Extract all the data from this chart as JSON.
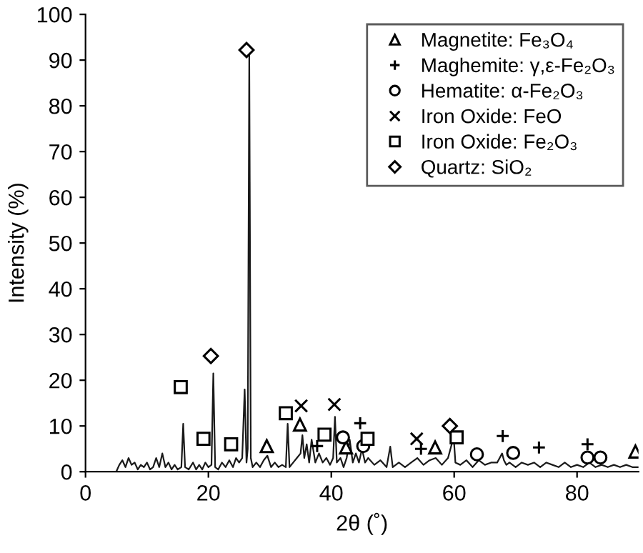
{
  "chart_data": {
    "type": "line",
    "xlabel": "2θ (˚)",
    "ylabel": "Intensity (%)",
    "xlim": [
      0,
      90
    ],
    "xticks": [
      0,
      20,
      40,
      60,
      80
    ],
    "ylim": [
      0,
      100
    ],
    "yticks": [
      0,
      10,
      20,
      30,
      40,
      50,
      60,
      70,
      80,
      90,
      100
    ],
    "grid": false,
    "legend": "top right",
    "series": [
      {
        "color": "#1a1a1a",
        "marker": "none",
        "x": [
          0,
          5,
          5.5,
          6,
          6.5,
          7,
          7.5,
          8,
          8.5,
          9,
          9.5,
          10,
          10.5,
          11,
          11.5,
          12,
          12.5,
          13,
          13.5,
          14,
          14.5,
          15,
          15.6,
          15.9,
          16.2,
          16.8,
          17.5,
          18,
          18.5,
          19,
          19.5,
          20,
          20.5,
          20.8,
          21.1,
          21.6,
          22.2,
          22.8,
          23.4,
          24,
          24.5,
          25,
          25.5,
          25.9,
          26.2,
          26.4,
          26.65,
          26.9,
          27.2,
          27.8,
          28.4,
          29,
          29.6,
          30.2,
          30.8,
          31.4,
          32,
          32.6,
          32.9,
          33.2,
          33.8,
          34.4,
          35,
          35.3,
          35.6,
          36,
          36.4,
          36.8,
          37.4,
          38,
          38.6,
          39.2,
          39.8,
          40.3,
          40.6,
          40.9,
          41.5,
          42,
          42.5,
          43,
          43.5,
          44,
          44.5,
          45,
          45.5,
          46,
          47,
          48,
          49,
          49.6,
          50,
          51,
          52,
          53,
          54,
          55,
          56,
          57,
          58,
          59,
          59.6,
          59.9,
          60.2,
          61,
          62,
          63,
          64,
          65,
          66,
          67,
          67.8,
          68.1,
          68.5,
          69,
          70,
          71,
          72,
          73,
          74,
          75,
          76,
          77,
          78,
          79,
          80,
          81,
          82,
          83,
          84,
          85,
          86,
          87,
          88,
          89,
          90
        ],
        "values": [
          0,
          0,
          1.5,
          2.5,
          1,
          3,
          1.5,
          2,
          0.5,
          1.5,
          1,
          2,
          0.5,
          1,
          3,
          1,
          4,
          1,
          2,
          0.5,
          1.5,
          0.5,
          1,
          10.5,
          1,
          0.5,
          2,
          0.5,
          1.5,
          0.5,
          2,
          1,
          1.5,
          21.5,
          1,
          0.5,
          2,
          1,
          2.5,
          1,
          3,
          2,
          3,
          18,
          2,
          5,
          91,
          3,
          1,
          2,
          1,
          2.5,
          3.5,
          1,
          2,
          1,
          1.5,
          1,
          10.5,
          1,
          2,
          3,
          4,
          8,
          3,
          6,
          2,
          7,
          2,
          4,
          2,
          3,
          1.5,
          3,
          12,
          2,
          3,
          1,
          3,
          7,
          2,
          4,
          2,
          5,
          2,
          3,
          1.5,
          2.5,
          1,
          5.5,
          1,
          2,
          1,
          2,
          3,
          1.5,
          2.5,
          3,
          1.5,
          3,
          6,
          8,
          2,
          1.5,
          2.5,
          1,
          2.5,
          1.5,
          2,
          2,
          4,
          2.5,
          1.5,
          2,
          1,
          2,
          1.5,
          2,
          1,
          2,
          1.5,
          1,
          2,
          1,
          1.5,
          1,
          2,
          1,
          1.5,
          1,
          1.5,
          1,
          1.5,
          1,
          1
        ]
      },
      {
        "type": "scatter",
        "name": "Magnetite: Fe₃O₄",
        "color": "#000000",
        "marker": "triangle",
        "x": [
          29.5,
          34.9,
          42.4,
          56.9,
          89.5
        ],
        "values": [
          5.6,
          10.3,
          5.3,
          5.3,
          4.4
        ]
      },
      {
        "type": "scatter",
        "name": "Maghemite: γ,ε-Fe₂O₃",
        "color": "#000000",
        "marker": "cross",
        "x": [
          37.7,
          44.7,
          54.6,
          67.9,
          73.8,
          81.7
        ],
        "values": [
          5.6,
          10.6,
          5,
          7.8,
          5.3,
          6
        ]
      },
      {
        "type": "scatter",
        "name": "Hematite: α-Fe₂O₃",
        "color": "#000000",
        "marker": "circle",
        "x": [
          41.9,
          45.2,
          63.7,
          69.6,
          81.7,
          83.8
        ],
        "values": [
          7.5,
          5.6,
          3.8,
          4.1,
          3.1,
          3.1
        ]
      },
      {
        "type": "scatter",
        "name": "Iron Oxide: FeO",
        "color": "#000000",
        "marker": "x",
        "x": [
          35.1,
          40.5,
          53.9
        ],
        "values": [
          14.4,
          14.7,
          7.2
        ]
      },
      {
        "type": "scatter",
        "name": "Iron Oxide: Fe₂O₃",
        "color": "#000000",
        "marker": "square",
        "x": [
          15.5,
          19.2,
          23.7,
          32.6,
          38.9,
          45.9,
          60.4
        ],
        "values": [
          18.5,
          7.2,
          6,
          12.8,
          8.1,
          7.2,
          7.5
        ]
      },
      {
        "type": "scatter",
        "name": "Quartz: SiO₂",
        "color": "#000000",
        "marker": "diamond",
        "x": [
          26.2,
          20.4,
          59.3
        ],
        "values": [
          92.2,
          25.3,
          10
        ]
      }
    ]
  }
}
